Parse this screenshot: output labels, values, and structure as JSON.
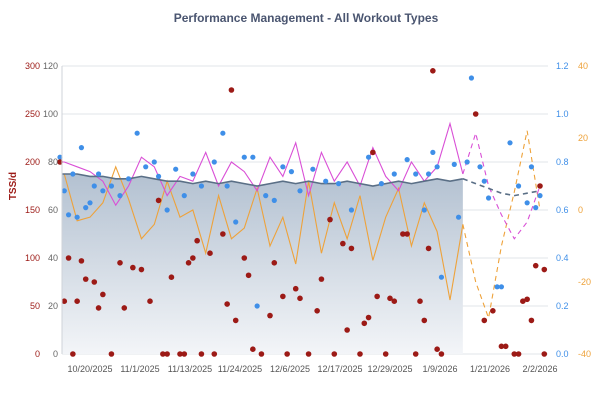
{
  "chart_data": {
    "type": "line",
    "title": "Performance Management - All Workout Types",
    "legend": "none",
    "grid": true,
    "colors": {
      "ctl": "#5a6f86",
      "ctl_fill": "#b9c6d4",
      "atl": "#d94fd6",
      "tsb": "#eea23a",
      "tss": "#9c1a16",
      "if": "#3f8fe8",
      "title": "#4a5570"
    },
    "axes": {
      "tss": {
        "label": "TSS/d",
        "range": [
          0,
          300
        ],
        "ticks": [
          "0",
          "50",
          "100",
          "150",
          "200",
          "250",
          "300"
        ],
        "side": "left"
      },
      "ctl_atl": {
        "range": [
          0,
          120
        ],
        "ticks": [
          "0",
          "20",
          "40",
          "60",
          "80",
          "100",
          "120"
        ],
        "side": "left"
      },
      "if": {
        "range": [
          0,
          1.2
        ],
        "ticks": [
          "0.0",
          "0.2",
          "0.4",
          "0.6",
          "0.8",
          "1.0",
          "1.2"
        ],
        "side": "right"
      },
      "tsb": {
        "range": [
          -40,
          40
        ],
        "ticks": [
          "-40",
          "-20",
          "0",
          "20",
          "40"
        ],
        "side": "right"
      },
      "x_ticks": [
        "10/20/2025",
        "11/1/2025",
        "11/13/2025",
        "11/24/2025",
        "12/6/2025",
        "12/17/2025",
        "12/29/2025",
        "1/9/2026",
        "1/21/2026",
        "2/2/2026"
      ]
    },
    "dates": [
      "2025-10-14",
      "2025-10-17",
      "2025-10-20",
      "2025-10-23",
      "2025-10-26",
      "2025-10-29",
      "2025-11-01",
      "2025-11-04",
      "2025-11-07",
      "2025-11-10",
      "2025-11-13",
      "2025-11-16",
      "2025-11-19",
      "2025-11-22",
      "2025-11-25",
      "2025-11-28",
      "2025-12-01",
      "2025-12-04",
      "2025-12-07",
      "2025-12-10",
      "2025-12-13",
      "2025-12-16",
      "2025-12-19",
      "2025-12-22",
      "2025-12-25",
      "2025-12-28",
      "2025-12-31",
      "2026-01-03",
      "2026-01-06",
      "2026-01-09",
      "2026-01-12",
      "2026-01-15"
    ],
    "projection_dates": [
      "2026-01-15",
      "2026-01-18",
      "2026-01-21",
      "2026-01-24",
      "2026-01-27",
      "2026-01-30",
      "2026-02-02"
    ],
    "series": [
      {
        "key": "ctl",
        "axis": "ctl_atl",
        "values": [
          75,
          75,
          74,
          74,
          73,
          73,
          74,
          73,
          72,
          72,
          71,
          72,
          71,
          72,
          71,
          70,
          71,
          72,
          71,
          72,
          71,
          71,
          72,
          71,
          70,
          71,
          72,
          71,
          72,
          73,
          72,
          73
        ],
        "projection": [
          73,
          71,
          69,
          67,
          66,
          67,
          68
        ]
      },
      {
        "key": "atl",
        "axis": "ctl_atl",
        "values": [
          80,
          78,
          76,
          72,
          62,
          70,
          82,
          78,
          66,
          74,
          72,
          84,
          70,
          80,
          76,
          68,
          82,
          74,
          88,
          66,
          84,
          72,
          80,
          70,
          86,
          74,
          68,
          80,
          72,
          78,
          96,
          75
        ],
        "projection": [
          75,
          92,
          70,
          58,
          48,
          55,
          70
        ]
      },
      {
        "key": "tsb",
        "axis": "tsb",
        "values": [
          10,
          -3,
          -2,
          2,
          12,
          3,
          -8,
          -4,
          8,
          -2,
          0,
          -12,
          4,
          -8,
          -5,
          6,
          -10,
          -2,
          -15,
          8,
          -12,
          2,
          -8,
          4,
          -14,
          -2,
          6,
          -10,
          2,
          -6,
          -25,
          -4
        ],
        "projection": [
          -4,
          -20,
          -30,
          -10,
          5,
          22,
          0
        ]
      }
    ],
    "tss_points": [
      [
        "2025-10-13",
        200
      ],
      [
        "2025-10-14",
        55
      ],
      [
        "2025-10-15",
        100
      ],
      [
        "2025-10-16",
        0
      ],
      [
        "2025-10-17",
        55
      ],
      [
        "2025-10-18",
        97
      ],
      [
        "2025-10-19",
        78
      ],
      [
        "2025-10-21",
        75
      ],
      [
        "2025-10-22",
        48
      ],
      [
        "2025-10-23",
        62
      ],
      [
        "2025-10-25",
        0
      ],
      [
        "2025-10-27",
        95
      ],
      [
        "2025-10-28",
        48
      ],
      [
        "2025-10-30",
        90
      ],
      [
        "2025-11-01",
        88
      ],
      [
        "2025-11-03",
        55
      ],
      [
        "2025-11-05",
        160
      ],
      [
        "2025-11-06",
        0
      ],
      [
        "2025-11-07",
        0
      ],
      [
        "2025-11-08",
        80
      ],
      [
        "2025-11-10",
        0
      ],
      [
        "2025-11-11",
        0
      ],
      [
        "2025-11-12",
        95
      ],
      [
        "2025-11-13",
        100
      ],
      [
        "2025-11-14",
        118
      ],
      [
        "2025-11-15",
        0
      ],
      [
        "2025-11-17",
        105
      ],
      [
        "2025-11-18",
        0
      ],
      [
        "2025-11-20",
        125
      ],
      [
        "2025-11-21",
        52
      ],
      [
        "2025-11-22",
        275
      ],
      [
        "2025-11-23",
        35
      ],
      [
        "2025-11-25",
        100
      ],
      [
        "2025-11-26",
        82
      ],
      [
        "2025-11-27",
        5
      ],
      [
        "2025-11-29",
        0
      ],
      [
        "2025-12-01",
        40
      ],
      [
        "2025-12-02",
        95
      ],
      [
        "2025-12-04",
        60
      ],
      [
        "2025-12-05",
        0
      ],
      [
        "2025-12-07",
        68
      ],
      [
        "2025-12-08",
        58
      ],
      [
        "2025-12-10",
        0
      ],
      [
        "2025-12-12",
        45
      ],
      [
        "2025-12-13",
        78
      ],
      [
        "2025-12-15",
        140
      ],
      [
        "2025-12-16",
        0
      ],
      [
        "2025-12-18",
        115
      ],
      [
        "2025-12-19",
        25
      ],
      [
        "2025-12-20",
        110
      ],
      [
        "2025-12-22",
        0
      ],
      [
        "2025-12-23",
        32
      ],
      [
        "2025-12-24",
        38
      ],
      [
        "2025-12-25",
        210
      ],
      [
        "2025-12-26",
        60
      ],
      [
        "2025-12-28",
        0
      ],
      [
        "2025-12-29",
        58
      ],
      [
        "2025-12-30",
        55
      ],
      [
        "2026-01-01",
        125
      ],
      [
        "2026-01-02",
        125
      ],
      [
        "2026-01-04",
        0
      ],
      [
        "2026-01-05",
        55
      ],
      [
        "2026-01-06",
        35
      ],
      [
        "2026-01-07",
        110
      ],
      [
        "2026-01-08",
        295
      ],
      [
        "2026-01-09",
        5
      ],
      [
        "2026-01-10",
        0
      ],
      [
        "2026-01-18",
        250
      ],
      [
        "2026-01-20",
        35
      ],
      [
        "2026-01-22",
        45
      ],
      [
        "2026-01-24",
        8
      ],
      [
        "2026-01-25",
        8
      ],
      [
        "2026-01-27",
        0
      ],
      [
        "2026-01-28",
        0
      ],
      [
        "2026-01-29",
        55
      ],
      [
        "2026-01-30",
        57
      ],
      [
        "2026-01-31",
        35
      ],
      [
        "2026-02-01",
        92
      ],
      [
        "2026-02-02",
        175
      ],
      [
        "2026-02-03",
        88
      ],
      [
        "2026-02-03",
        0
      ]
    ],
    "if_points": [
      [
        "2025-10-13",
        0.82
      ],
      [
        "2025-10-14",
        0.68
      ],
      [
        "2025-10-15",
        0.58
      ],
      [
        "2025-10-16",
        0.75
      ],
      [
        "2025-10-17",
        0.57
      ],
      [
        "2025-10-18",
        0.86
      ],
      [
        "2025-10-19",
        0.61
      ],
      [
        "2025-10-20",
        0.63
      ],
      [
        "2025-10-21",
        0.7
      ],
      [
        "2025-10-22",
        0.75
      ],
      [
        "2025-10-23",
        0.68
      ],
      [
        "2025-10-25",
        0.7
      ],
      [
        "2025-10-27",
        0.66
      ],
      [
        "2025-10-29",
        0.73
      ],
      [
        "2025-10-31",
        0.92
      ],
      [
        "2025-11-02",
        0.78
      ],
      [
        "2025-11-04",
        0.8
      ],
      [
        "2025-11-05",
        0.74
      ],
      [
        "2025-11-07",
        0.6
      ],
      [
        "2025-11-09",
        0.77
      ],
      [
        "2025-11-11",
        0.66
      ],
      [
        "2025-11-13",
        0.75
      ],
      [
        "2025-11-15",
        0.7
      ],
      [
        "2025-11-18",
        0.8
      ],
      [
        "2025-11-20",
        0.92
      ],
      [
        "2025-11-21",
        0.7
      ],
      [
        "2025-11-23",
        0.55
      ],
      [
        "2025-11-25",
        0.82
      ],
      [
        "2025-11-27",
        0.82
      ],
      [
        "2025-11-28",
        0.2
      ],
      [
        "2025-11-30",
        0.66
      ],
      [
        "2025-12-02",
        0.64
      ],
      [
        "2025-12-04",
        0.78
      ],
      [
        "2025-12-06",
        0.76
      ],
      [
        "2025-12-08",
        0.68
      ],
      [
        "2025-12-11",
        0.77
      ],
      [
        "2025-12-14",
        0.72
      ],
      [
        "2025-12-17",
        0.71
      ],
      [
        "2025-12-20",
        0.6
      ],
      [
        "2025-12-24",
        0.82
      ],
      [
        "2025-12-27",
        0.71
      ],
      [
        "2025-12-30",
        0.75
      ],
      [
        "2026-01-02",
        0.81
      ],
      [
        "2026-01-04",
        0.75
      ],
      [
        "2026-01-06",
        0.6
      ],
      [
        "2026-01-07",
        0.75
      ],
      [
        "2026-01-08",
        0.84
      ],
      [
        "2026-01-09",
        0.78
      ],
      [
        "2026-01-10",
        0.32
      ],
      [
        "2026-01-13",
        0.79
      ],
      [
        "2026-01-14",
        0.57
      ],
      [
        "2026-01-16",
        0.8
      ],
      [
        "2026-01-17",
        1.15
      ],
      [
        "2026-01-19",
        0.78
      ],
      [
        "2026-01-20",
        0.72
      ],
      [
        "2026-01-21",
        0.65
      ],
      [
        "2026-01-23",
        0.28
      ],
      [
        "2026-01-24",
        0.28
      ],
      [
        "2026-01-26",
        0.88
      ],
      [
        "2026-01-28",
        0.7
      ],
      [
        "2026-01-30",
        0.63
      ],
      [
        "2026-01-31",
        0.78
      ],
      [
        "2026-02-01",
        0.61
      ],
      [
        "2026-02-02",
        0.66
      ]
    ]
  }
}
